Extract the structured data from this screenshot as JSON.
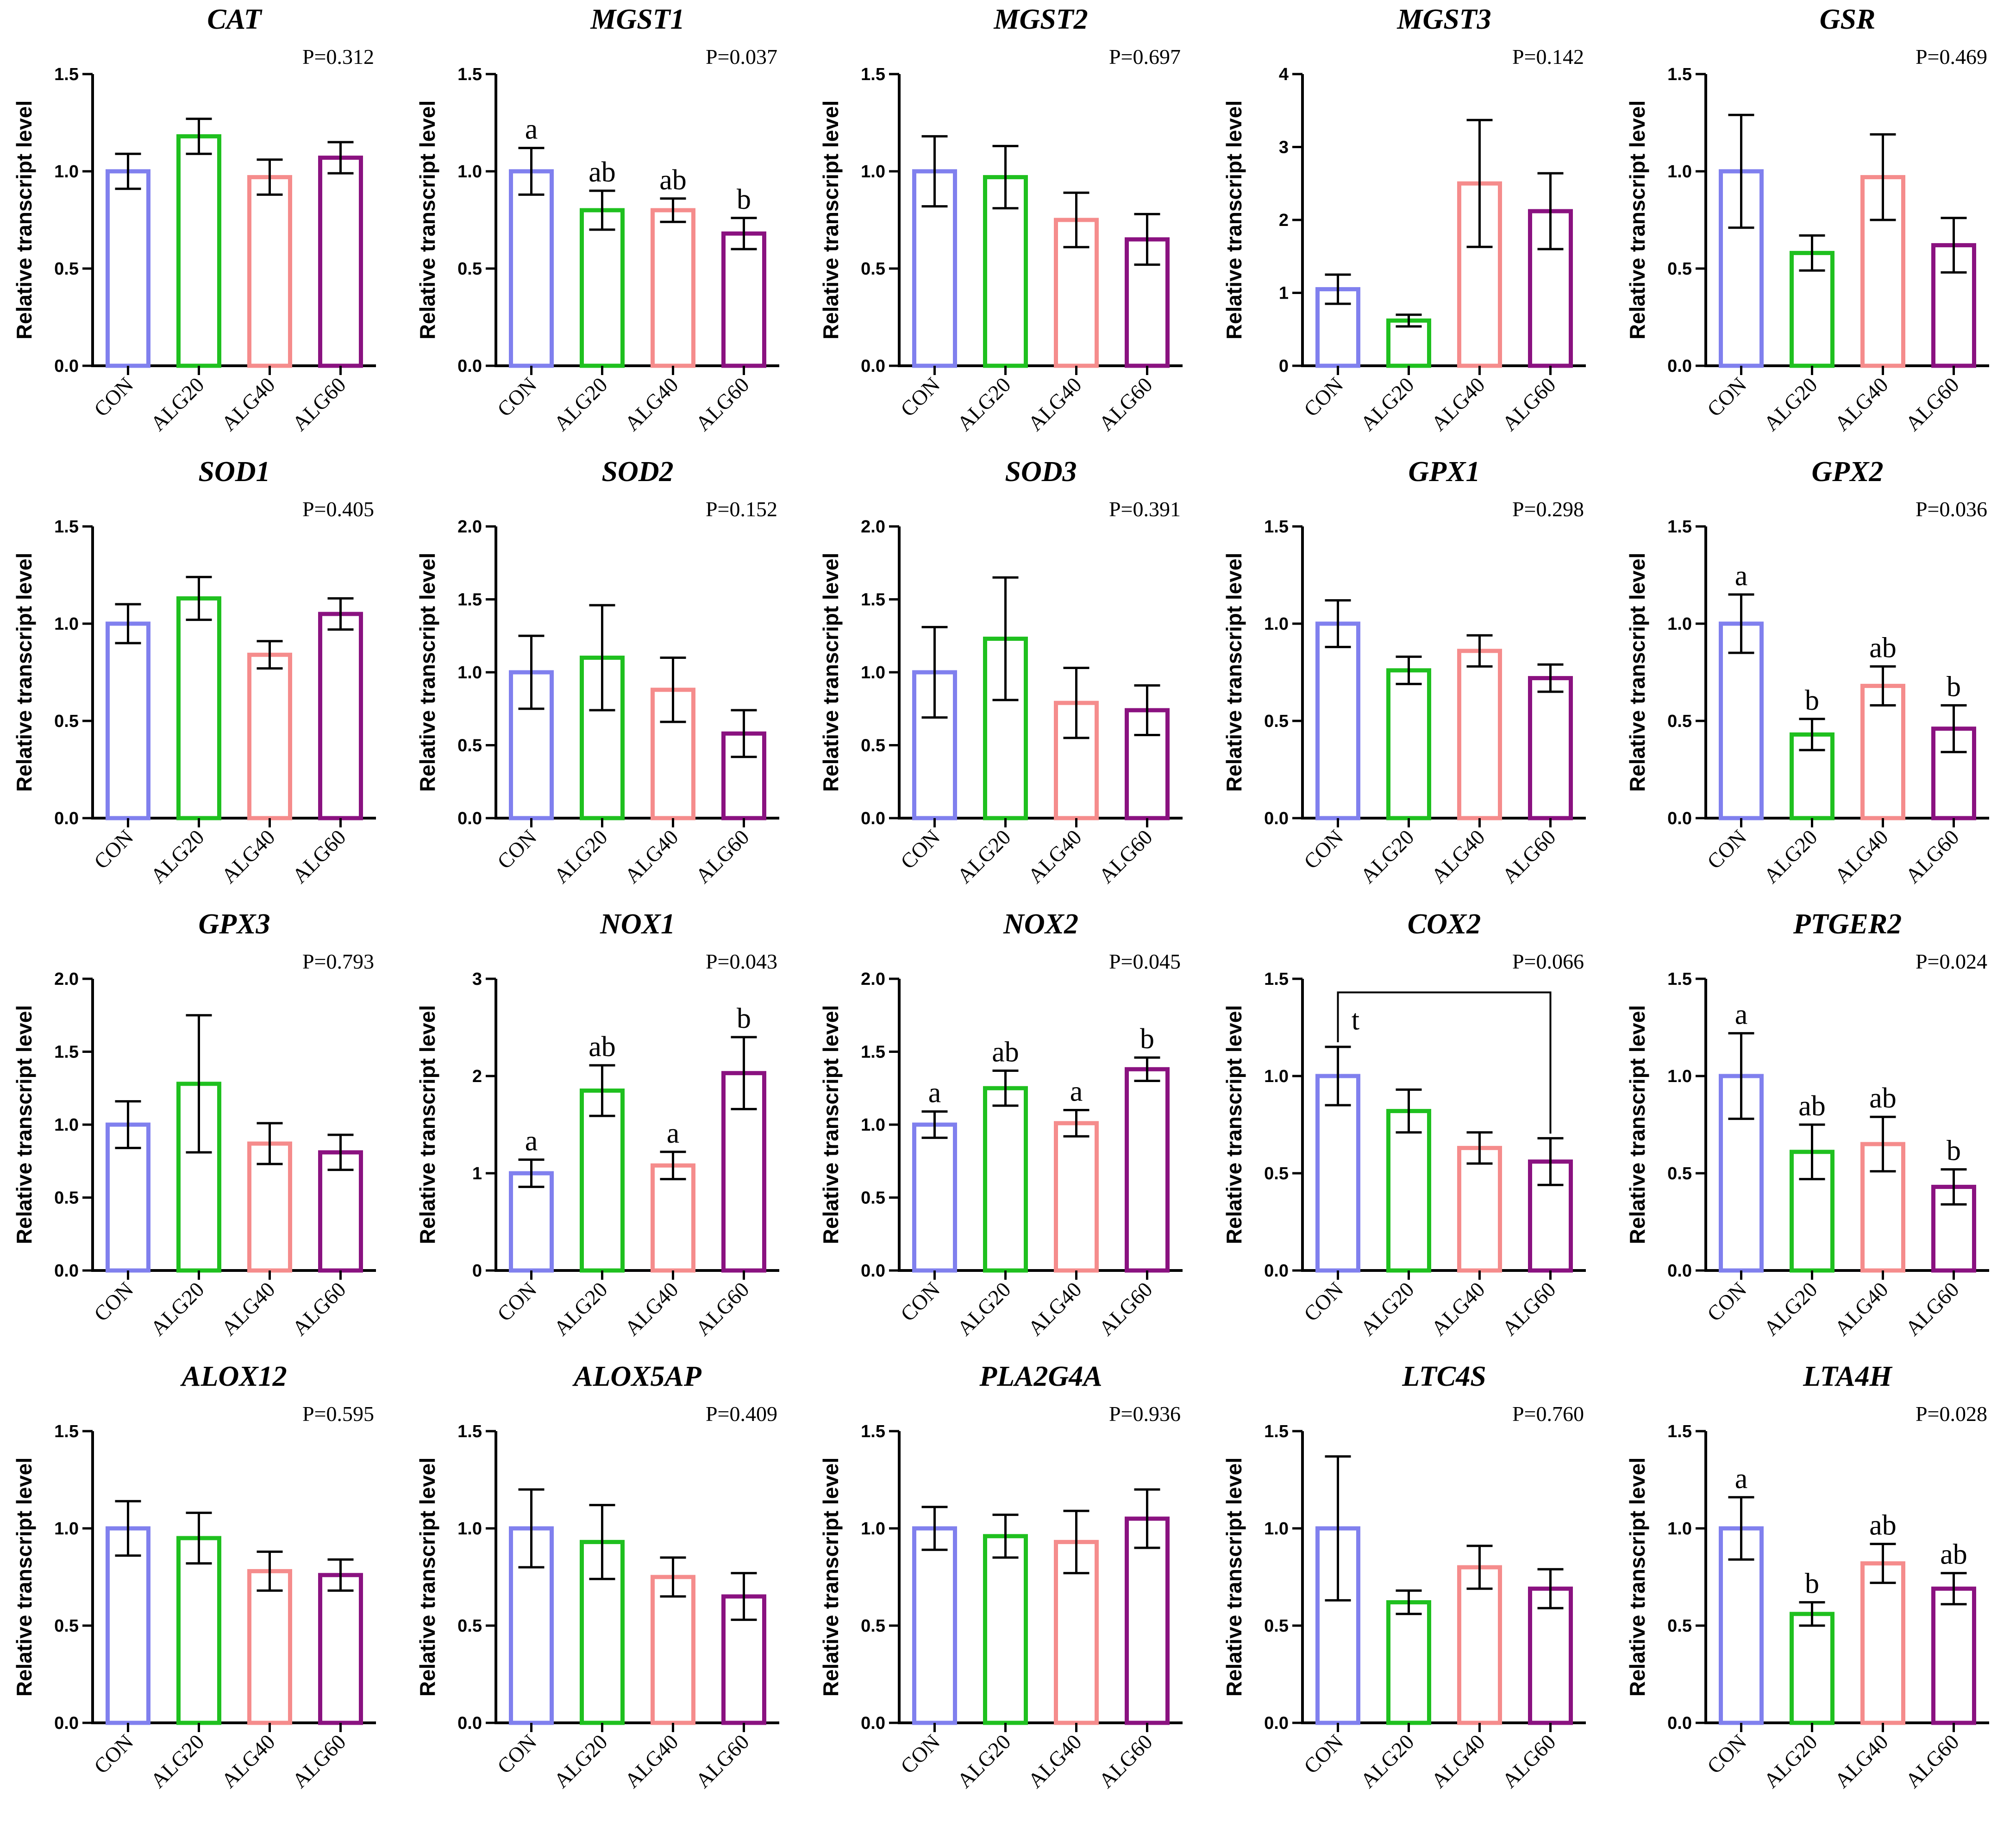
{
  "colors": {
    "CON": "#8080ee",
    "ALG20": "#1fc01f",
    "ALG40": "#f58c8c",
    "ALG60": "#8a1280",
    "axis": "#000000"
  },
  "chart_data": [
    {
      "type": "bar",
      "title": "CAT",
      "pvalue": "P=0.312",
      "ylabel": "Relative transcript level",
      "ylim": [
        0,
        1.5
      ],
      "yticks": [
        "0.0",
        "0.5",
        "1.0",
        "1.5"
      ],
      "categories": [
        "CON",
        "ALG20",
        "ALG40",
        "ALG60"
      ],
      "values": [
        1.0,
        1.18,
        0.97,
        1.07
      ],
      "errors": [
        0.09,
        0.09,
        0.09,
        0.08
      ],
      "letters": [
        "",
        "",
        "",
        ""
      ]
    },
    {
      "type": "bar",
      "title": "MGST1",
      "pvalue": "P=0.037",
      "ylabel": "Relative transcript level",
      "ylim": [
        0,
        1.5
      ],
      "yticks": [
        "0.0",
        "0.5",
        "1.0",
        "1.5"
      ],
      "categories": [
        "CON",
        "ALG20",
        "ALG40",
        "ALG60"
      ],
      "values": [
        1.0,
        0.8,
        0.8,
        0.68
      ],
      "errors": [
        0.12,
        0.1,
        0.06,
        0.08
      ],
      "letters": [
        "a",
        "ab",
        "ab",
        "b"
      ]
    },
    {
      "type": "bar",
      "title": "MGST2",
      "pvalue": "P=0.697",
      "ylabel": "Relative transcript level",
      "ylim": [
        0,
        1.5
      ],
      "yticks": [
        "0.0",
        "0.5",
        "1.0",
        "1.5"
      ],
      "categories": [
        "CON",
        "ALG20",
        "ALG40",
        "ALG60"
      ],
      "values": [
        1.0,
        0.97,
        0.75,
        0.65
      ],
      "errors": [
        0.18,
        0.16,
        0.14,
        0.13
      ],
      "letters": [
        "",
        "",
        "",
        ""
      ]
    },
    {
      "type": "bar",
      "title": "MGST3",
      "pvalue": "P=0.142",
      "ylabel": "Relative transcript level",
      "ylim": [
        0,
        4
      ],
      "yticks": [
        "0",
        "1",
        "2",
        "3",
        "4"
      ],
      "categories": [
        "CON",
        "ALG20",
        "ALG40",
        "ALG60"
      ],
      "values": [
        1.05,
        0.62,
        2.5,
        2.12
      ],
      "errors": [
        0.2,
        0.08,
        0.87,
        0.52
      ],
      "letters": [
        "",
        "",
        "",
        ""
      ]
    },
    {
      "type": "bar",
      "title": "GSR",
      "pvalue": "P=0.469",
      "ylabel": "Relative transcript level",
      "ylim": [
        0,
        1.5
      ],
      "yticks": [
        "0.0",
        "0.5",
        "1.0",
        "1.5"
      ],
      "categories": [
        "CON",
        "ALG20",
        "ALG40",
        "ALG60"
      ],
      "values": [
        1.0,
        0.58,
        0.97,
        0.62
      ],
      "errors": [
        0.29,
        0.09,
        0.22,
        0.14
      ],
      "letters": [
        "",
        "",
        "",
        ""
      ]
    },
    {
      "type": "bar",
      "title": "SOD1",
      "pvalue": "P=0.405",
      "ylabel": "Relative transcript level",
      "ylim": [
        0,
        1.5
      ],
      "yticks": [
        "0.0",
        "0.5",
        "1.0",
        "1.5"
      ],
      "categories": [
        "CON",
        "ALG20",
        "ALG40",
        "ALG60"
      ],
      "values": [
        1.0,
        1.13,
        0.84,
        1.05
      ],
      "errors": [
        0.1,
        0.11,
        0.07,
        0.08
      ],
      "letters": [
        "",
        "",
        "",
        ""
      ]
    },
    {
      "type": "bar",
      "title": "SOD2",
      "pvalue": "P=0.152",
      "ylabel": "Relative transcript level",
      "ylim": [
        0,
        2.0
      ],
      "yticks": [
        "0.0",
        "0.5",
        "1.0",
        "1.5",
        "2.0"
      ],
      "categories": [
        "CON",
        "ALG20",
        "ALG40",
        "ALG60"
      ],
      "values": [
        1.0,
        1.1,
        0.88,
        0.58
      ],
      "errors": [
        0.25,
        0.36,
        0.22,
        0.16
      ],
      "letters": [
        "",
        "",
        "",
        ""
      ]
    },
    {
      "type": "bar",
      "title": "SOD3",
      "pvalue": "P=0.391",
      "ylabel": "Relative transcript level",
      "ylim": [
        0,
        2.0
      ],
      "yticks": [
        "0.0",
        "0.5",
        "1.0",
        "1.5",
        "2.0"
      ],
      "categories": [
        "CON",
        "ALG20",
        "ALG40",
        "ALG60"
      ],
      "values": [
        1.0,
        1.23,
        0.79,
        0.74
      ],
      "errors": [
        0.31,
        0.42,
        0.24,
        0.17
      ],
      "letters": [
        "",
        "",
        "",
        ""
      ]
    },
    {
      "type": "bar",
      "title": "GPX1",
      "pvalue": "P=0.298",
      "ylabel": "Relative transcript level",
      "ylim": [
        0,
        1.5
      ],
      "yticks": [
        "0.0",
        "0.5",
        "1.0",
        "1.5"
      ],
      "categories": [
        "CON",
        "ALG20",
        "ALG40",
        "ALG60"
      ],
      "values": [
        1.0,
        0.76,
        0.86,
        0.72
      ],
      "errors": [
        0.12,
        0.07,
        0.08,
        0.07
      ],
      "letters": [
        "",
        "",
        "",
        ""
      ]
    },
    {
      "type": "bar",
      "title": "GPX2",
      "pvalue": "P=0.036",
      "ylabel": "Relative transcript level",
      "ylim": [
        0,
        1.5
      ],
      "yticks": [
        "0.0",
        "0.5",
        "1.0",
        "1.5"
      ],
      "categories": [
        "CON",
        "ALG20",
        "ALG40",
        "ALG60"
      ],
      "values": [
        1.0,
        0.43,
        0.68,
        0.46
      ],
      "errors": [
        0.15,
        0.08,
        0.1,
        0.12
      ],
      "letters": [
        "a",
        "b",
        "ab",
        "b"
      ]
    },
    {
      "type": "bar",
      "title": "GPX3",
      "pvalue": "P=0.793",
      "ylabel": "Relative transcript level",
      "ylim": [
        0,
        2.0
      ],
      "yticks": [
        "0.0",
        "0.5",
        "1.0",
        "1.5",
        "2.0"
      ],
      "categories": [
        "CON",
        "ALG20",
        "ALG40",
        "ALG60"
      ],
      "values": [
        1.0,
        1.28,
        0.87,
        0.81
      ],
      "errors": [
        0.16,
        0.47,
        0.14,
        0.12
      ],
      "letters": [
        "",
        "",
        "",
        ""
      ]
    },
    {
      "type": "bar",
      "title": "NOX1",
      "pvalue": "P=0.043",
      "ylabel": "Relative transcript level",
      "ylim": [
        0,
        3
      ],
      "yticks": [
        "0",
        "1",
        "2",
        "3"
      ],
      "categories": [
        "CON",
        "ALG20",
        "ALG40",
        "ALG60"
      ],
      "values": [
        1.0,
        1.85,
        1.08,
        2.03
      ],
      "errors": [
        0.14,
        0.26,
        0.14,
        0.37
      ],
      "letters": [
        "a",
        "ab",
        "a",
        "b"
      ]
    },
    {
      "type": "bar",
      "title": "NOX2",
      "pvalue": "P=0.045",
      "ylabel": "Relative transcript level",
      "ylim": [
        0,
        2.0
      ],
      "yticks": [
        "0.0",
        "0.5",
        "1.0",
        "1.5",
        "2.0"
      ],
      "categories": [
        "CON",
        "ALG20",
        "ALG40",
        "ALG60"
      ],
      "values": [
        1.0,
        1.25,
        1.01,
        1.38
      ],
      "errors": [
        0.09,
        0.12,
        0.09,
        0.08
      ],
      "letters": [
        "a",
        "ab",
        "a",
        "b"
      ]
    },
    {
      "type": "bar",
      "title": "COX2",
      "pvalue": "P=0.066",
      "ylabel": "Relative transcript level",
      "ylim": [
        0,
        1.5
      ],
      "yticks": [
        "0.0",
        "0.5",
        "1.0",
        "1.5"
      ],
      "categories": [
        "CON",
        "ALG20",
        "ALG40",
        "ALG60"
      ],
      "values": [
        1.0,
        0.82,
        0.63,
        0.56
      ],
      "errors": [
        0.15,
        0.11,
        0.08,
        0.12
      ],
      "letters": [
        "",
        "",
        "",
        ""
      ],
      "bracket": {
        "from": 0,
        "to": 3,
        "y": 1.43,
        "label": "t"
      }
    },
    {
      "type": "bar",
      "title": "PTGER2",
      "pvalue": "P=0.024",
      "ylabel": "Relative transcript level",
      "ylim": [
        0,
        1.5
      ],
      "yticks": [
        "0.0",
        "0.5",
        "1.0",
        "1.5"
      ],
      "categories": [
        "CON",
        "ALG20",
        "ALG40",
        "ALG60"
      ],
      "values": [
        1.0,
        0.61,
        0.65,
        0.43
      ],
      "errors": [
        0.22,
        0.14,
        0.14,
        0.09
      ],
      "letters": [
        "a",
        "ab",
        "ab",
        "b"
      ]
    },
    {
      "type": "bar",
      "title": "ALOX12",
      "pvalue": "P=0.595",
      "ylabel": "Relative transcript level",
      "ylim": [
        0,
        1.5
      ],
      "yticks": [
        "0.0",
        "0.5",
        "1.0",
        "1.5"
      ],
      "categories": [
        "CON",
        "ALG20",
        "ALG40",
        "ALG60"
      ],
      "values": [
        1.0,
        0.95,
        0.78,
        0.76
      ],
      "errors": [
        0.14,
        0.13,
        0.1,
        0.08
      ],
      "letters": [
        "",
        "",
        "",
        ""
      ]
    },
    {
      "type": "bar",
      "title": "ALOX5AP",
      "pvalue": "P=0.409",
      "ylabel": "Relative transcript level",
      "ylim": [
        0,
        1.5
      ],
      "yticks": [
        "0.0",
        "0.5",
        "1.0",
        "1.5"
      ],
      "categories": [
        "CON",
        "ALG20",
        "ALG40",
        "ALG60"
      ],
      "values": [
        1.0,
        0.93,
        0.75,
        0.65
      ],
      "errors": [
        0.2,
        0.19,
        0.1,
        0.12
      ],
      "letters": [
        "",
        "",
        "",
        ""
      ]
    },
    {
      "type": "bar",
      "title": "PLA2G4A",
      "pvalue": "P=0.936",
      "ylabel": "Relative transcript level",
      "ylim": [
        0,
        1.5
      ],
      "yticks": [
        "0.0",
        "0.5",
        "1.0",
        "1.5"
      ],
      "categories": [
        "CON",
        "ALG20",
        "ALG40",
        "ALG60"
      ],
      "values": [
        1.0,
        0.96,
        0.93,
        1.05
      ],
      "errors": [
        0.11,
        0.11,
        0.16,
        0.15
      ],
      "letters": [
        "",
        "",
        "",
        ""
      ]
    },
    {
      "type": "bar",
      "title": "LTC4S",
      "pvalue": "P=0.760",
      "ylabel": "Relative transcript level",
      "ylim": [
        0,
        1.5
      ],
      "yticks": [
        "0.0",
        "0.5",
        "1.0",
        "1.5"
      ],
      "categories": [
        "CON",
        "ALG20",
        "ALG40",
        "ALG60"
      ],
      "values": [
        1.0,
        0.62,
        0.8,
        0.69
      ],
      "errors": [
        0.37,
        0.06,
        0.11,
        0.1
      ],
      "letters": [
        "",
        "",
        "",
        ""
      ]
    },
    {
      "type": "bar",
      "title": "LTA4H",
      "pvalue": "P=0.028",
      "ylabel": "Relative transcript level",
      "ylim": [
        0,
        1.5
      ],
      "yticks": [
        "0.0",
        "0.5",
        "1.0",
        "1.5"
      ],
      "categories": [
        "CON",
        "ALG20",
        "ALG40",
        "ALG60"
      ],
      "values": [
        1.0,
        0.56,
        0.82,
        0.69
      ],
      "errors": [
        0.16,
        0.06,
        0.1,
        0.08
      ],
      "letters": [
        "a",
        "b",
        "ab",
        "ab"
      ]
    }
  ]
}
